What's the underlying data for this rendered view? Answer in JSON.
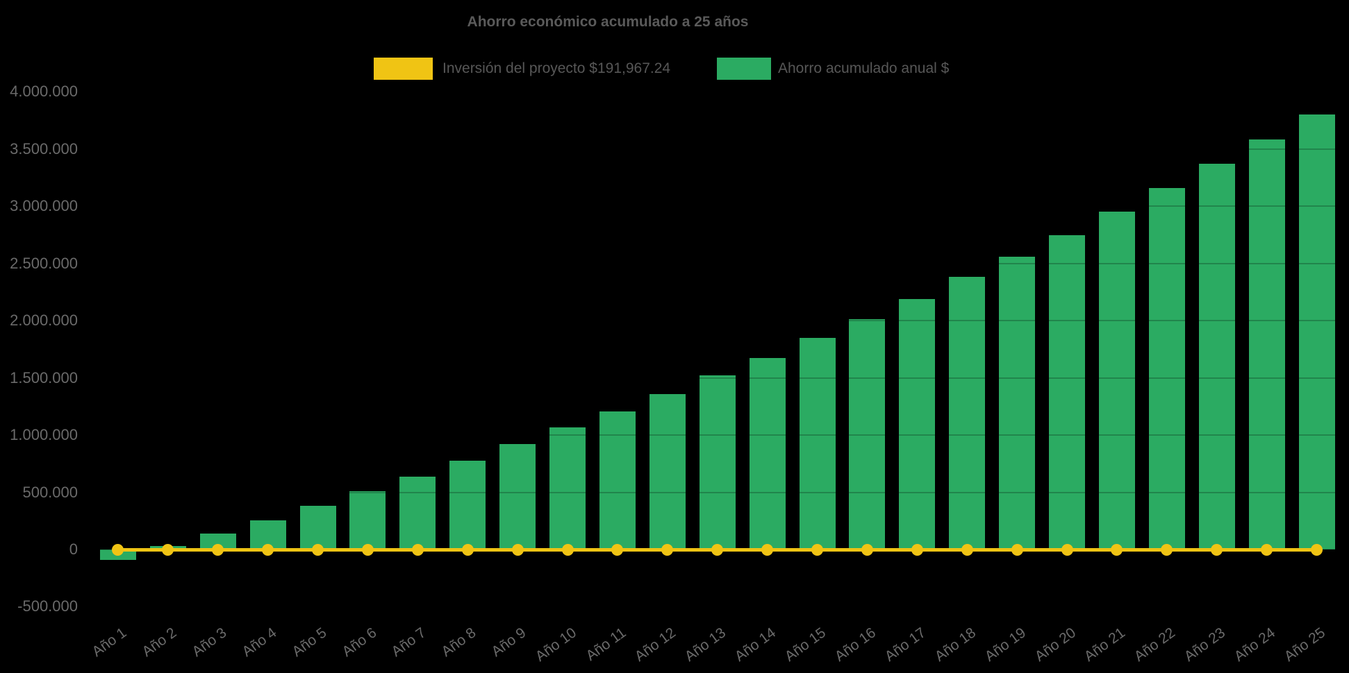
{
  "chart_data": {
    "type": "bar",
    "title": "Ahorro económico acumulado a 25 años",
    "categories": [
      "Año 1",
      "Año 2",
      "Año 3",
      "Año 4",
      "Año 5",
      "Año 6",
      "Año 7",
      "Año 8",
      "Año 9",
      "Año 10",
      "Año 11",
      "Año 12",
      "Año 13",
      "Año 14",
      "Año 15",
      "Año 16",
      "Año 17",
      "Año 18",
      "Año 19",
      "Año 20",
      "Año 21",
      "Año 22",
      "Año 23",
      "Año 24",
      "Año 25"
    ],
    "series": [
      {
        "name": "Inversión del proyecto $191,967.24",
        "type": "line",
        "color": "#f0c414",
        "marker": "circle",
        "plotted_value": 0
      },
      {
        "name": "Ahorro acumulado anual $",
        "type": "bar",
        "color": "#2bab62",
        "values": [
          -92000,
          30000,
          140000,
          252000,
          383000,
          510000,
          635000,
          777000,
          919000,
          1064000,
          1208000,
          1359000,
          1519000,
          1676000,
          1848000,
          2014000,
          2187000,
          2380000,
          2561000,
          2748000,
          2954000,
          3156000,
          3368000,
          3580000,
          3804000
        ]
      }
    ],
    "ylim": [
      -500000,
      4000000
    ],
    "yticks": {
      "values": [
        4000000,
        3500000,
        3000000,
        2500000,
        2000000,
        1500000,
        1000000,
        500000,
        0,
        -500000
      ],
      "labels": [
        "4.000.000",
        "3.500.000",
        "3.000.000",
        "2.500.000",
        "2.000.000",
        "1.500.000",
        "1.000.000",
        "500.000",
        "0",
        "-500.000"
      ]
    },
    "grid": "horizontal-faint",
    "legend_position": "top"
  }
}
